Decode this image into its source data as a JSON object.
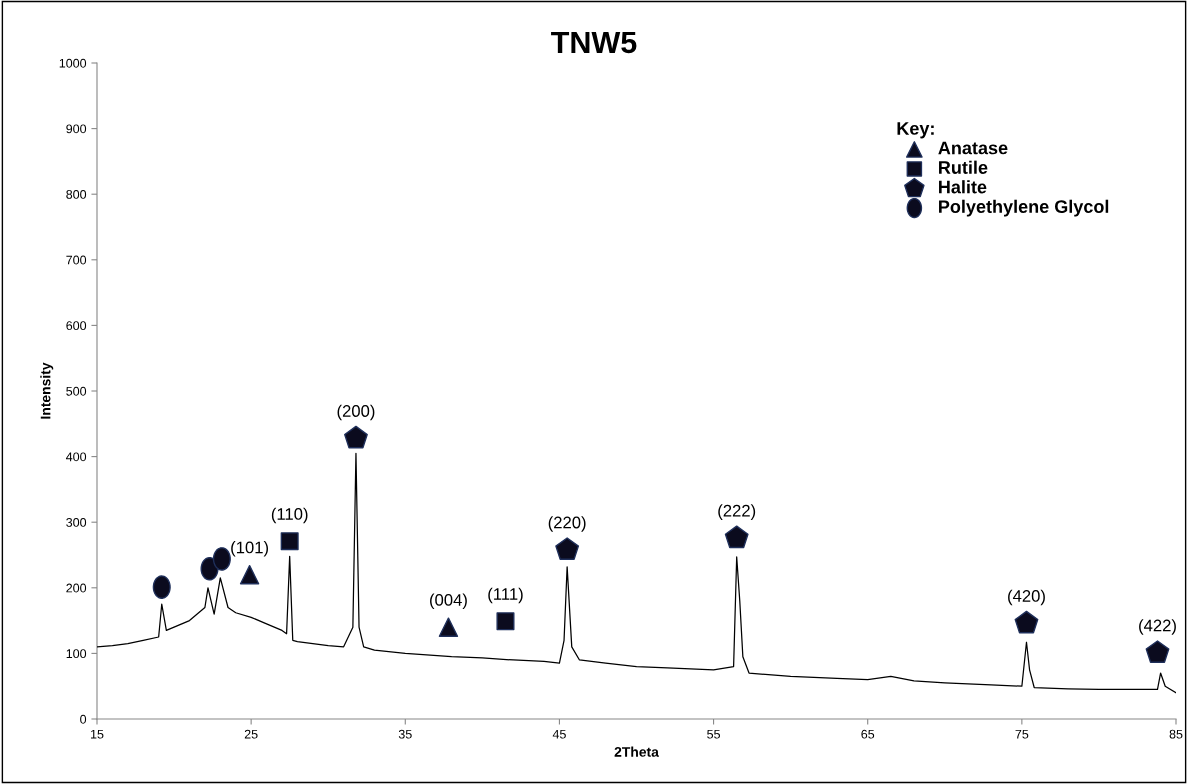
{
  "chart_data": {
    "type": "line",
    "title": "TNW5",
    "xlabel": "2Theta",
    "ylabel": "Intensity",
    "xlim": [
      15,
      85
    ],
    "xticks": [
      15,
      25,
      35,
      45,
      55,
      65,
      75,
      85
    ],
    "ylim": [
      0,
      1000
    ],
    "yticks": [
      0,
      100,
      200,
      300,
      400,
      500,
      600,
      700,
      800,
      900,
      1000
    ],
    "grid": false,
    "legend": "top right",
    "legend_title": "Key:",
    "series": [
      {
        "color": "#000000",
        "x": [
          15,
          16,
          17,
          18,
          19,
          19.2,
          19.5,
          20,
          21,
          22,
          22.2,
          22.6,
          23.0,
          23.5,
          24,
          25,
          26,
          27,
          27.3,
          27.5,
          27.7,
          28,
          29,
          30,
          31,
          31.6,
          31.8,
          32.0,
          32.3,
          33,
          35,
          38,
          40,
          42,
          44,
          45,
          45.3,
          45.5,
          45.8,
          46.3,
          48,
          50,
          52,
          55,
          56.3,
          56.5,
          56.7,
          56.9,
          57.3,
          60,
          63,
          65,
          66.5,
          68,
          70,
          73,
          75,
          75.3,
          75.5,
          75.8,
          78,
          80,
          82,
          83.8,
          84,
          84.3,
          85
        ],
        "values": [
          110,
          112,
          115,
          120,
          125,
          175,
          135,
          140,
          150,
          170,
          200,
          160,
          215,
          170,
          162,
          155,
          145,
          135,
          130,
          248,
          120,
          118,
          115,
          112,
          110,
          140,
          405,
          140,
          110,
          105,
          100,
          95,
          93,
          90,
          88,
          85,
          120,
          232,
          110,
          90,
          85,
          80,
          78,
          75,
          80,
          247,
          180,
          95,
          70,
          65,
          62,
          60,
          65,
          58,
          55,
          52,
          50,
          117,
          75,
          48,
          46,
          45,
          45,
          45,
          70,
          50,
          40
        ]
      },
      {
        "type": "scatter",
        "name": "Anatase",
        "color": "#0b0b1e",
        "marker": "triangle",
        "x": [
          24.9,
          37.8
        ],
        "values": [
          220,
          140
        ]
      },
      {
        "type": "scatter",
        "name": "Rutile",
        "color": "#0b0b1e",
        "marker": "square",
        "x": [
          27.5,
          41.5
        ],
        "values": [
          271,
          149
        ]
      },
      {
        "type": "scatter",
        "name": "Halite",
        "color": "#0b0b1e",
        "x": [
          31.8,
          45.5,
          56.5,
          75.3,
          83.8
        ],
        "values": [
          428,
          258,
          276,
          146,
          101
        ]
      },
      {
        "type": "scatter",
        "name": "Polyethylene Glycol",
        "color": "#0b0b1e",
        "marker": "circle",
        "x": [
          19.2,
          22.3,
          23.1
        ],
        "values": [
          201,
          229,
          244
        ]
      }
    ],
    "annotations": [
      {
        "text": "(101)",
        "x": 24.9,
        "y": 220
      },
      {
        "text": "(110)",
        "x": 27.5,
        "y": 271
      },
      {
        "text": "(200)",
        "x": 31.8,
        "y": 428
      },
      {
        "text": "(004)",
        "x": 37.8,
        "y": 140
      },
      {
        "text": "(111)",
        "x": 41.5,
        "y": 149
      },
      {
        "text": "(220)",
        "x": 45.5,
        "y": 258
      },
      {
        "text": "(222)",
        "x": 56.5,
        "y": 276
      },
      {
        "text": "(420)",
        "x": 75.3,
        "y": 146
      },
      {
        "text": "(422)",
        "x": 83.8,
        "y": 101
      }
    ]
  }
}
